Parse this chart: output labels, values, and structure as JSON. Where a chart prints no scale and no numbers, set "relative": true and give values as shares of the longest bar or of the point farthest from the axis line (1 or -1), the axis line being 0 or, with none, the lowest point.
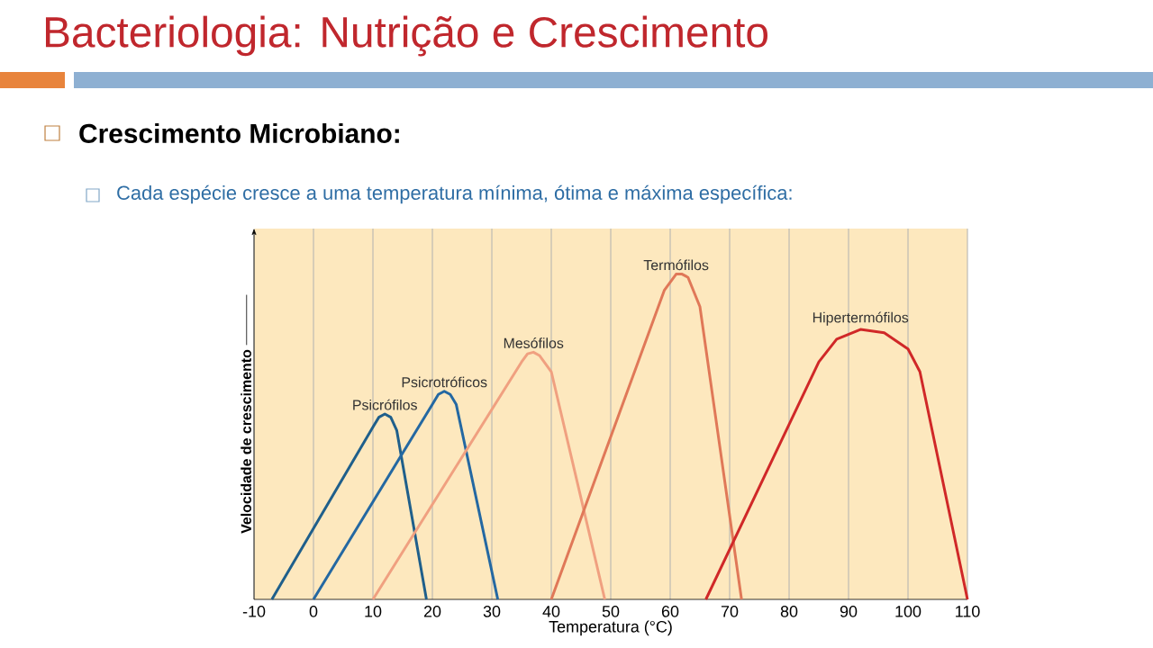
{
  "chart_data": {
    "type": "line",
    "title": "Bacteriologia: Nutrição e Crescimento",
    "subtitle": "Crescimento Microbiano:",
    "annotations": [
      "Cada espécie cresce a uma temperatura mínima, ótima e máxima específica:"
    ],
    "xlabel": "Temperatura (°C)",
    "ylabel": "Velocidade de crescimento",
    "relative": true,
    "xlim": [
      -10,
      110
    ],
    "xticks": [
      -10,
      0,
      10,
      20,
      30,
      40,
      50,
      60,
      70,
      80,
      90,
      100,
      110
    ],
    "grid": "x",
    "series": [
      {
        "name": "Psicrófilos",
        "color": "#1f5f8b",
        "x": [
          -7,
          10,
          11,
          12,
          13,
          14,
          19
        ],
        "values": [
          0,
          0.53,
          0.56,
          0.57,
          0.56,
          0.52,
          0
        ]
      },
      {
        "name": "Psicrotróficos",
        "color": "#2468a2",
        "x": [
          0,
          20,
          21,
          22,
          23,
          24,
          31
        ],
        "values": [
          0,
          0.6,
          0.63,
          0.64,
          0.63,
          0.6,
          0
        ]
      },
      {
        "name": "Mesófilos",
        "color": "#f0a080",
        "x": [
          10,
          35,
          36,
          37,
          38,
          40,
          49
        ],
        "values": [
          0,
          0.73,
          0.755,
          0.76,
          0.75,
          0.7,
          0
        ]
      },
      {
        "name": "Termófilos",
        "color": "#e07858",
        "x": [
          40,
          59,
          61,
          62,
          63,
          65,
          72
        ],
        "values": [
          0,
          0.95,
          1,
          1,
          0.99,
          0.9,
          0
        ]
      },
      {
        "name": "Hipertermófilos",
        "color": "#d02828",
        "x": [
          66,
          85,
          88,
          92,
          96,
          100,
          102,
          110
        ],
        "values": [
          0,
          0.73,
          0.8,
          0.83,
          0.82,
          0.77,
          0.7,
          0
        ]
      }
    ]
  }
}
